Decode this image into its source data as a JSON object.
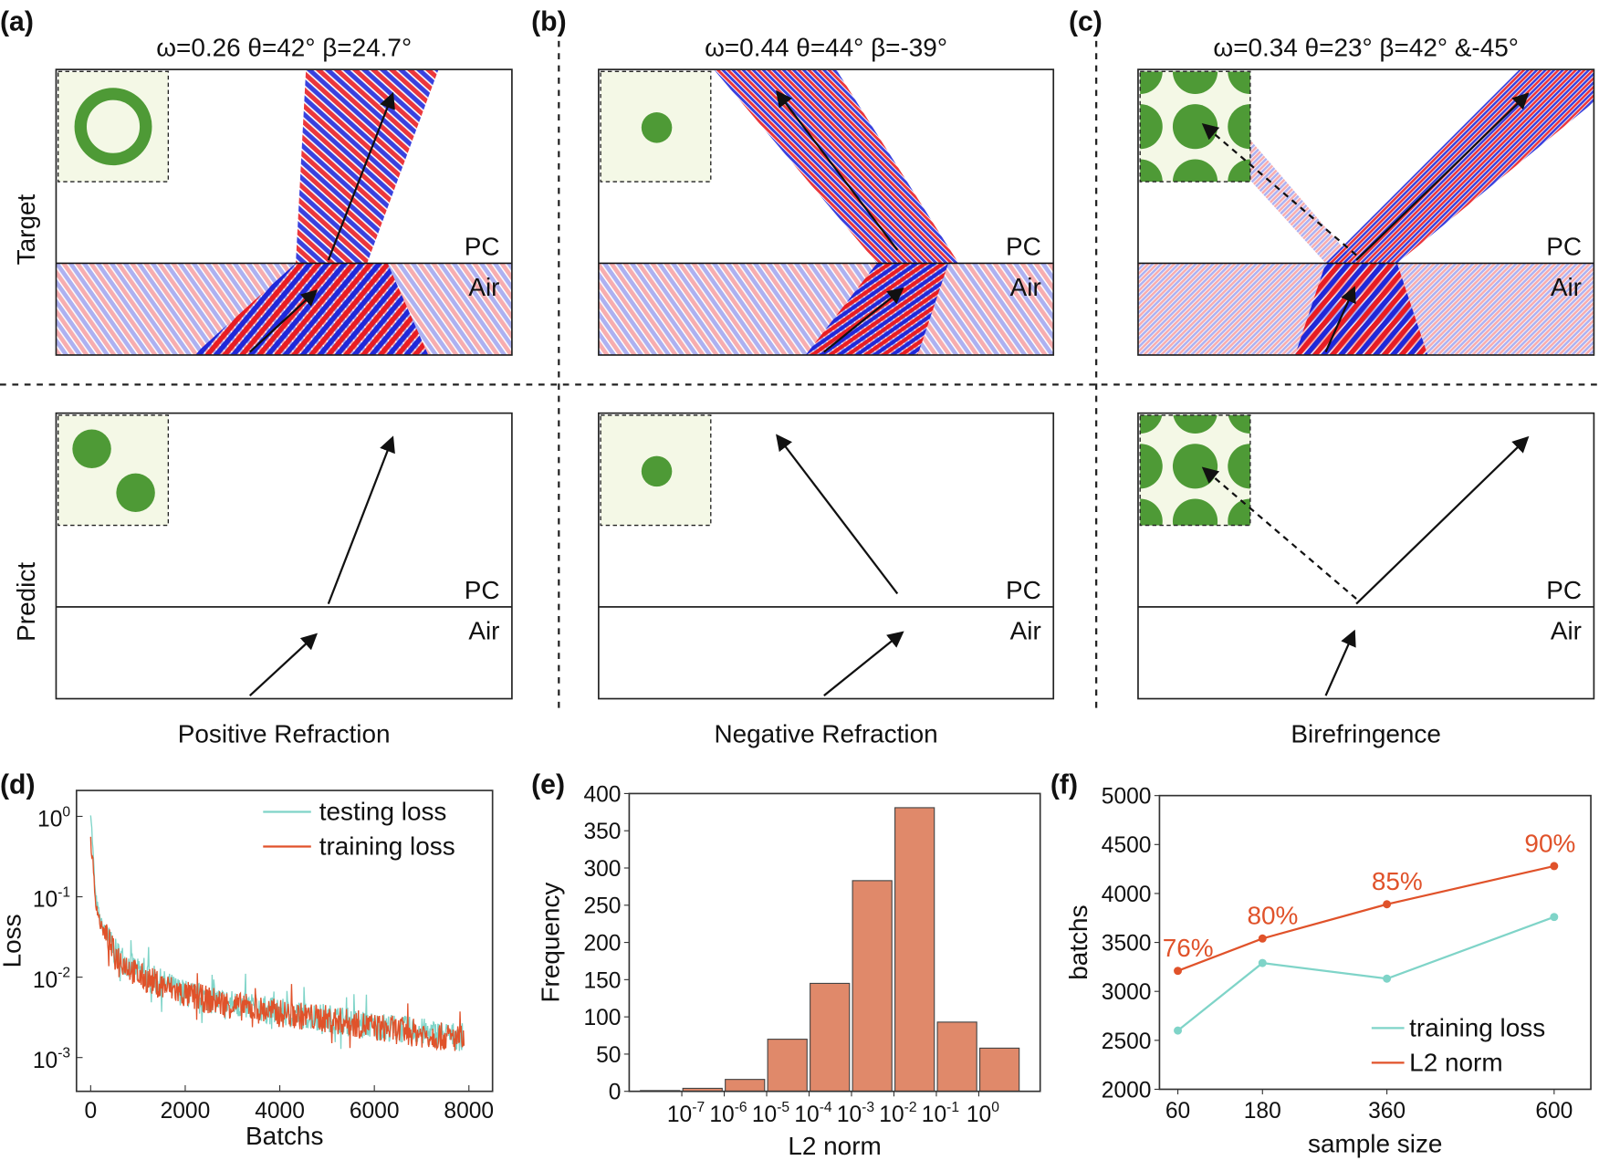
{
  "panel_labels": [
    "(a)",
    "(b)",
    "(c)",
    "(d)",
    "(e)",
    "(f)"
  ],
  "row_labels": [
    "Target",
    "Predict"
  ],
  "columns": [
    {
      "title": "ω=0.26 θ=42° β=24.7°",
      "caption": "Positive Refraction",
      "lattice": "ring"
    },
    {
      "title": "ω=0.44 θ=44° β=-39°",
      "caption": "Negative Refraction",
      "lattice": "dot"
    },
    {
      "title": "ω=0.34 θ=23° β=42° &-45°",
      "caption": "Birefringence",
      "lattice": "square"
    }
  ],
  "region_labels": {
    "upper": "PC",
    "lower": "Air"
  },
  "colors": {
    "field_positive": "#e8141a",
    "field_negative": "#1620d8",
    "lattice": "#4e9a36",
    "lattice_bg": "#f4f8e6",
    "testing": "#7fd4c8",
    "training": "#e0522a",
    "bar": "#e0896a"
  },
  "chart_data": [
    {
      "type": "line",
      "panel": "(d)",
      "xlabel": "Batchs",
      "ylabel": "Loss",
      "yscale": "log",
      "xlim": [
        -300,
        8500
      ],
      "ylim": [
        0.00038,
        2.1
      ],
      "xticks": [
        0,
        2000,
        4000,
        6000,
        8000
      ],
      "yticks": [
        {
          "value": 1,
          "label": "10",
          "exp": "0"
        },
        {
          "value": 0.1,
          "label": "10",
          "exp": "-1"
        },
        {
          "value": 0.01,
          "label": "10",
          "exp": "-2"
        },
        {
          "value": 0.001,
          "label": "10",
          "exp": "-3"
        }
      ],
      "legend": "top-right",
      "series": [
        {
          "name": "testing loss",
          "color": "#7fd4c8",
          "x": [
            0,
            100,
            200,
            500,
            1000,
            2000,
            3000,
            4000,
            5000,
            6000,
            7000,
            7900
          ],
          "y": [
            1.2,
            0.1,
            0.05,
            0.02,
            0.011,
            0.006,
            0.0045,
            0.0035,
            0.003,
            0.0024,
            0.002,
            0.0017
          ]
        },
        {
          "name": "training loss",
          "color": "#e0522a",
          "x": [
            0,
            100,
            200,
            500,
            1000,
            2000,
            3000,
            4000,
            5000,
            6000,
            7000,
            7900
          ],
          "y": [
            0.5,
            0.09,
            0.045,
            0.019,
            0.01,
            0.0058,
            0.0043,
            0.0034,
            0.0029,
            0.0023,
            0.0019,
            0.0016
          ]
        }
      ]
    },
    {
      "type": "bar",
      "panel": "(e)",
      "xlabel": "L2 norm",
      "ylabel": "Frequency",
      "ylim": [
        0,
        400
      ],
      "yticks": [
        0,
        50,
        100,
        150,
        200,
        250,
        300,
        350,
        400
      ],
      "xticks": [
        {
          "label": "10",
          "exp": "-7"
        },
        {
          "label": "10",
          "exp": "-6"
        },
        {
          "label": "10",
          "exp": "-5"
        },
        {
          "label": "10",
          "exp": "-4"
        },
        {
          "label": "10",
          "exp": "-3"
        },
        {
          "label": "10",
          "exp": "-2"
        },
        {
          "label": "10",
          "exp": "-1"
        },
        {
          "label": "10",
          "exp": "0"
        }
      ],
      "values": [
        1,
        4,
        16,
        70,
        145,
        283,
        381,
        93,
        58
      ],
      "color": "#e0896a"
    },
    {
      "type": "line",
      "panel": "(f)",
      "xlabel": "sample size",
      "ylabel": "batchs",
      "categories": [
        60,
        180,
        360,
        600
      ],
      "ylim": [
        2000,
        5000
      ],
      "yticks": [
        2000,
        2500,
        3000,
        3500,
        4000,
        4500,
        5000
      ],
      "legend": "bottom-right",
      "series": [
        {
          "name": "training loss",
          "color": "#7fd4c8",
          "values": [
            2600,
            3290,
            3130,
            3760
          ]
        },
        {
          "name": "L2 norm",
          "color": "#e0522a",
          "values": [
            3210,
            3540,
            3890,
            4280
          ],
          "annotations": [
            "76%",
            "80%",
            "85%",
            "90%"
          ]
        }
      ]
    }
  ]
}
